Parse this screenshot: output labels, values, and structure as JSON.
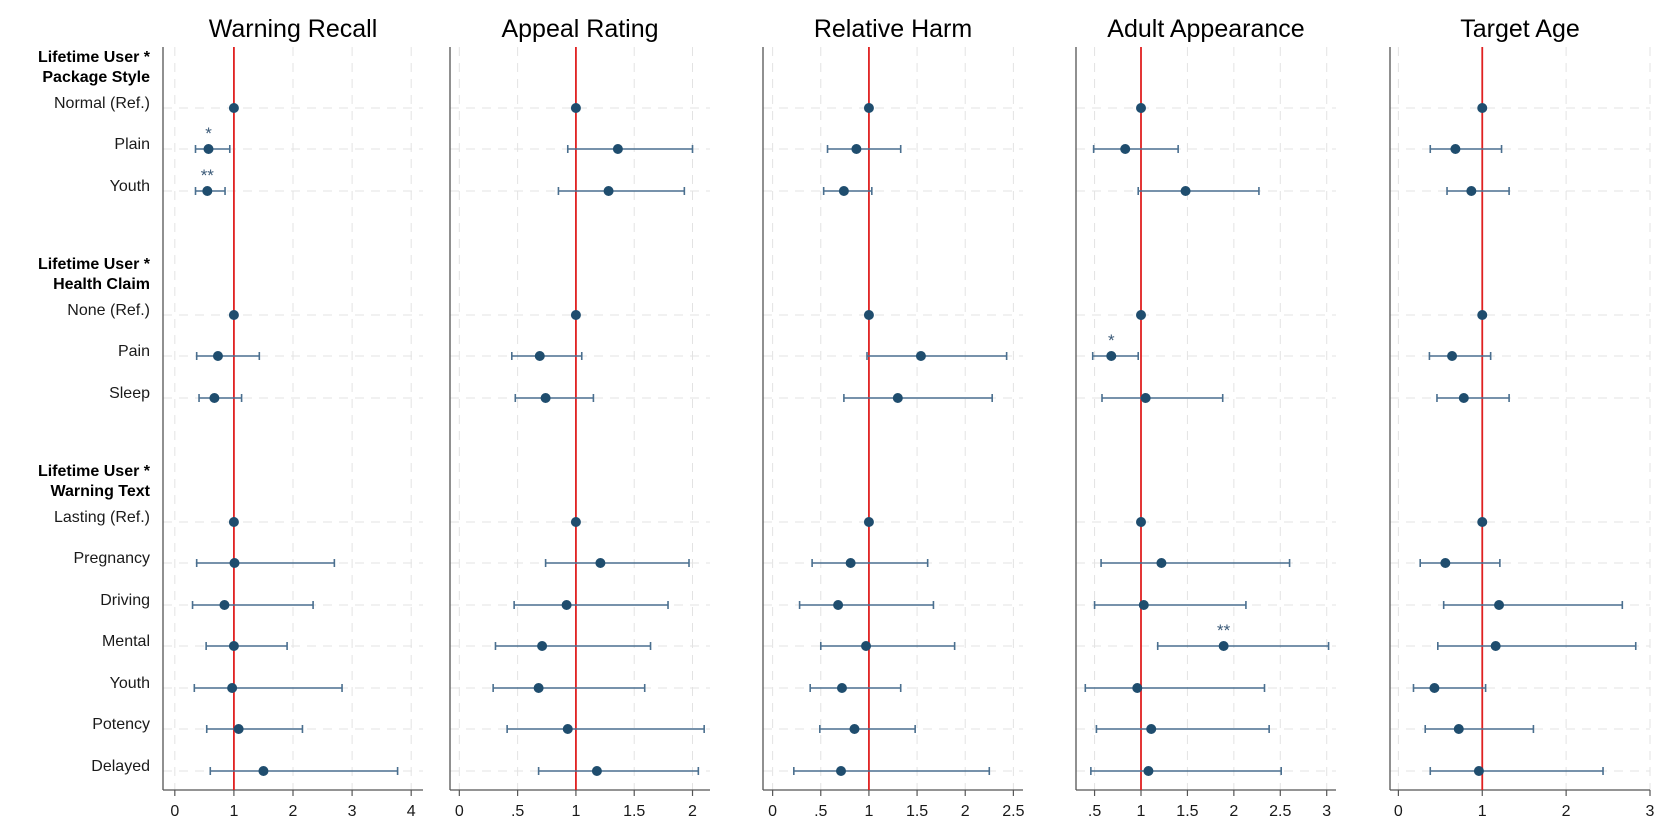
{
  "colors": {
    "point": "#1f4d6e",
    "errorbar": "#4a6f8f",
    "reference_line": "#e02020",
    "grid": "#e3e3e3",
    "axis": "#555555",
    "significance": "#3b5a78"
  },
  "groups": [
    {
      "title_lines": [
        "Lifetime User *",
        "Package Style"
      ]
    },
    {
      "title_lines": [
        "Lifetime User *",
        "Health Claim"
      ]
    },
    {
      "title_lines": [
        "Lifetime User *",
        "Warning Text"
      ]
    }
  ],
  "rows": [
    "Normal (Ref.)",
    "Plain",
    "Youth",
    "None (Ref.)",
    "Pain",
    "Sleep",
    "Lasting (Ref.)",
    "Pregnancy",
    "Driving",
    "Mental",
    "Youth",
    "Potency",
    "Delayed"
  ],
  "chart_data": [
    {
      "type": "scatter",
      "title": "Warning Recall",
      "xlim": [
        -0.2,
        4.2
      ],
      "xticks": [
        0,
        1,
        2,
        3,
        4
      ],
      "xtick_labels": [
        "0",
        "1",
        "2",
        "3",
        "4"
      ],
      "reference_x": 1,
      "points": [
        {
          "label": "Normal (Ref.)",
          "value": 1,
          "ci": null,
          "sig": ""
        },
        {
          "label": "Plain",
          "value": 0.57,
          "ci": [
            0.35,
            0.93
          ],
          "sig": "*"
        },
        {
          "label": "Youth",
          "value": 0.55,
          "ci": [
            0.35,
            0.85
          ],
          "sig": "**"
        },
        {
          "label": "None (Ref.)",
          "value": 1,
          "ci": null,
          "sig": ""
        },
        {
          "label": "Pain",
          "value": 0.73,
          "ci": [
            0.37,
            1.43
          ],
          "sig": ""
        },
        {
          "label": "Sleep",
          "value": 0.67,
          "ci": [
            0.41,
            1.13
          ],
          "sig": ""
        },
        {
          "label": "Lasting (Ref.)",
          "value": 1,
          "ci": null,
          "sig": ""
        },
        {
          "label": "Pregnancy",
          "value": 1.01,
          "ci": [
            0.37,
            2.7
          ],
          "sig": ""
        },
        {
          "label": "Driving",
          "value": 0.84,
          "ci": [
            0.3,
            2.34
          ],
          "sig": ""
        },
        {
          "label": "Mental",
          "value": 1.0,
          "ci": [
            0.53,
            1.9
          ],
          "sig": ""
        },
        {
          "label": "Youth",
          "value": 0.97,
          "ci": [
            0.33,
            2.83
          ],
          "sig": ""
        },
        {
          "label": "Potency",
          "value": 1.08,
          "ci": [
            0.54,
            2.16
          ],
          "sig": ""
        },
        {
          "label": "Delayed",
          "value": 1.5,
          "ci": [
            0.6,
            3.77
          ],
          "sig": ""
        }
      ]
    },
    {
      "type": "scatter",
      "title": "Appeal Rating",
      "xlim": [
        -0.08,
        2.15
      ],
      "xticks": [
        0,
        0.5,
        1,
        1.5,
        2
      ],
      "xtick_labels": [
        "0",
        ".5",
        "1",
        "1.5",
        "2"
      ],
      "reference_x": 1,
      "points": [
        {
          "label": "Normal (Ref.)",
          "value": 1,
          "ci": null,
          "sig": ""
        },
        {
          "label": "Plain",
          "value": 1.36,
          "ci": [
            0.93,
            2.0
          ],
          "sig": ""
        },
        {
          "label": "Youth",
          "value": 1.28,
          "ci": [
            0.85,
            1.93
          ],
          "sig": ""
        },
        {
          "label": "None (Ref.)",
          "value": 1,
          "ci": null,
          "sig": ""
        },
        {
          "label": "Pain",
          "value": 0.69,
          "ci": [
            0.45,
            1.05
          ],
          "sig": ""
        },
        {
          "label": "Sleep",
          "value": 0.74,
          "ci": [
            0.48,
            1.15
          ],
          "sig": ""
        },
        {
          "label": "Lasting (Ref.)",
          "value": 1,
          "ci": null,
          "sig": ""
        },
        {
          "label": "Pregnancy",
          "value": 1.21,
          "ci": [
            0.74,
            1.97
          ],
          "sig": ""
        },
        {
          "label": "Driving",
          "value": 0.92,
          "ci": [
            0.47,
            1.79
          ],
          "sig": ""
        },
        {
          "label": "Mental",
          "value": 0.71,
          "ci": [
            0.31,
            1.64
          ],
          "sig": ""
        },
        {
          "label": "Youth",
          "value": 0.68,
          "ci": [
            0.29,
            1.59
          ],
          "sig": ""
        },
        {
          "label": "Potency",
          "value": 0.93,
          "ci": [
            0.41,
            2.1
          ],
          "sig": ""
        },
        {
          "label": "Delayed",
          "value": 1.18,
          "ci": [
            0.68,
            2.05
          ],
          "sig": ""
        }
      ]
    },
    {
      "type": "scatter",
      "title": "Relative Harm",
      "xlim": [
        -0.1,
        2.6
      ],
      "xticks": [
        0,
        0.5,
        1,
        1.5,
        2,
        2.5
      ],
      "xtick_labels": [
        "0",
        ".5",
        "1",
        "1.5",
        "2",
        "2.5"
      ],
      "reference_x": 1,
      "points": [
        {
          "label": "Normal (Ref.)",
          "value": 1,
          "ci": null,
          "sig": ""
        },
        {
          "label": "Plain",
          "value": 0.87,
          "ci": [
            0.57,
            1.33
          ],
          "sig": ""
        },
        {
          "label": "Youth",
          "value": 0.74,
          "ci": [
            0.53,
            1.03
          ],
          "sig": ""
        },
        {
          "label": "None (Ref.)",
          "value": 1,
          "ci": null,
          "sig": ""
        },
        {
          "label": "Pain",
          "value": 1.54,
          "ci": [
            0.98,
            2.43
          ],
          "sig": ""
        },
        {
          "label": "Sleep",
          "value": 1.3,
          "ci": [
            0.74,
            2.28
          ],
          "sig": ""
        },
        {
          "label": "Lasting (Ref.)",
          "value": 1,
          "ci": null,
          "sig": ""
        },
        {
          "label": "Pregnancy",
          "value": 0.81,
          "ci": [
            0.41,
            1.61
          ],
          "sig": ""
        },
        {
          "label": "Driving",
          "value": 0.68,
          "ci": [
            0.28,
            1.67
          ],
          "sig": ""
        },
        {
          "label": "Mental",
          "value": 0.97,
          "ci": [
            0.5,
            1.89
          ],
          "sig": ""
        },
        {
          "label": "Youth",
          "value": 0.72,
          "ci": [
            0.39,
            1.33
          ],
          "sig": ""
        },
        {
          "label": "Potency",
          "value": 0.85,
          "ci": [
            0.49,
            1.48
          ],
          "sig": ""
        },
        {
          "label": "Delayed",
          "value": 0.71,
          "ci": [
            0.22,
            2.25
          ],
          "sig": ""
        }
      ]
    },
    {
      "type": "scatter",
      "title": "Adult Appearance",
      "xlim": [
        0.3,
        3.1
      ],
      "xticks": [
        0.5,
        1,
        1.5,
        2,
        2.5,
        3
      ],
      "xtick_labels": [
        ".5",
        "1",
        "1.5",
        "2",
        "2.5",
        "3"
      ],
      "reference_x": 1,
      "points": [
        {
          "label": "Normal (Ref.)",
          "value": 1,
          "ci": null,
          "sig": ""
        },
        {
          "label": "Plain",
          "value": 0.83,
          "ci": [
            0.49,
            1.4
          ],
          "sig": ""
        },
        {
          "label": "Youth",
          "value": 1.48,
          "ci": [
            0.97,
            2.27
          ],
          "sig": ""
        },
        {
          "label": "None (Ref.)",
          "value": 1,
          "ci": null,
          "sig": ""
        },
        {
          "label": "Pain",
          "value": 0.68,
          "ci": [
            0.48,
            0.97
          ],
          "sig": "*"
        },
        {
          "label": "Sleep",
          "value": 1.05,
          "ci": [
            0.58,
            1.88
          ],
          "sig": ""
        },
        {
          "label": "Lasting (Ref.)",
          "value": 1,
          "ci": null,
          "sig": ""
        },
        {
          "label": "Pregnancy",
          "value": 1.22,
          "ci": [
            0.57,
            2.6
          ],
          "sig": ""
        },
        {
          "label": "Driving",
          "value": 1.03,
          "ci": [
            0.5,
            2.13
          ],
          "sig": ""
        },
        {
          "label": "Mental",
          "value": 1.89,
          "ci": [
            1.18,
            3.02
          ],
          "sig": "**"
        },
        {
          "label": "Youth",
          "value": 0.96,
          "ci": [
            0.4,
            2.33
          ],
          "sig": ""
        },
        {
          "label": "Potency",
          "value": 1.11,
          "ci": [
            0.52,
            2.38
          ],
          "sig": ""
        },
        {
          "label": "Delayed",
          "value": 1.08,
          "ci": [
            0.46,
            2.51
          ],
          "sig": ""
        }
      ]
    },
    {
      "type": "scatter",
      "title": "Target Age",
      "xlim": [
        -0.1,
        3.0
      ],
      "xticks": [
        0,
        1,
        2,
        3
      ],
      "xtick_labels": [
        "0",
        "1",
        "2",
        "3"
      ],
      "reference_x": 1,
      "points": [
        {
          "label": "Normal (Ref.)",
          "value": 1,
          "ci": null,
          "sig": ""
        },
        {
          "label": "Plain",
          "value": 0.68,
          "ci": [
            0.38,
            1.23
          ],
          "sig": ""
        },
        {
          "label": "Youth",
          "value": 0.87,
          "ci": [
            0.58,
            1.32
          ],
          "sig": ""
        },
        {
          "label": "None (Ref.)",
          "value": 1,
          "ci": null,
          "sig": ""
        },
        {
          "label": "Pain",
          "value": 0.64,
          "ci": [
            0.37,
            1.1
          ],
          "sig": ""
        },
        {
          "label": "Sleep",
          "value": 0.78,
          "ci": [
            0.46,
            1.32
          ],
          "sig": ""
        },
        {
          "label": "Lasting (Ref.)",
          "value": 1,
          "ci": null,
          "sig": ""
        },
        {
          "label": "Pregnancy",
          "value": 0.56,
          "ci": [
            0.26,
            1.21
          ],
          "sig": ""
        },
        {
          "label": "Driving",
          "value": 1.2,
          "ci": [
            0.54,
            2.67
          ],
          "sig": ""
        },
        {
          "label": "Mental",
          "value": 1.16,
          "ci": [
            0.47,
            2.83
          ],
          "sig": ""
        },
        {
          "label": "Youth",
          "value": 0.43,
          "ci": [
            0.18,
            1.04
          ],
          "sig": ""
        },
        {
          "label": "Potency",
          "value": 0.72,
          "ci": [
            0.32,
            1.61
          ],
          "sig": ""
        },
        {
          "label": "Delayed",
          "value": 0.96,
          "ci": [
            0.38,
            2.44
          ],
          "sig": ""
        }
      ]
    }
  ]
}
